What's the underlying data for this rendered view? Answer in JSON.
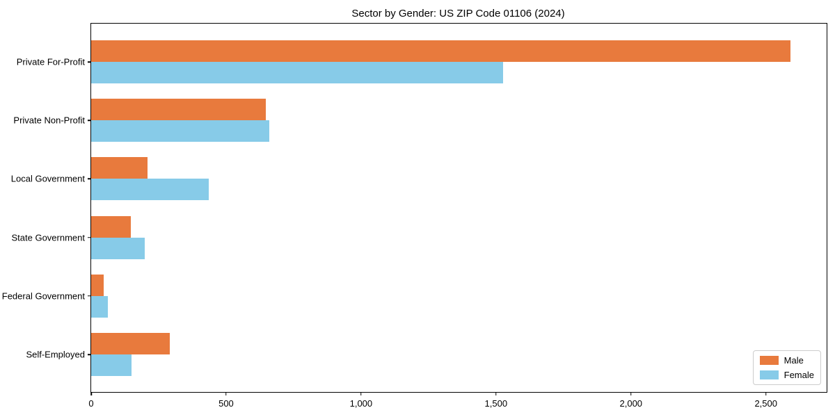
{
  "title": "Sector by Gender: US ZIP Code 01106 (2024)",
  "colors": {
    "male": "#E87A3D",
    "female": "#87CBE8",
    "axis": "#000000",
    "legend_border": "#cccccc",
    "background": "#ffffff"
  },
  "legend": {
    "position": "lower right",
    "entries": [
      {
        "label": "Male",
        "color_key": "male"
      },
      {
        "label": "Female",
        "color_key": "female"
      }
    ]
  },
  "chart_data": {
    "type": "bar",
    "orientation": "horizontal",
    "title": "Sector by Gender: US ZIP Code 01106 (2024)",
    "categories": [
      "Private For-Profit",
      "Private Non-Profit",
      "Local Government",
      "State Government",
      "Federal Government",
      "Self-Employed"
    ],
    "series": [
      {
        "name": "Male",
        "color": "#E87A3D",
        "values": [
          2590,
          647,
          209,
          147,
          46,
          291
        ]
      },
      {
        "name": "Female",
        "color": "#87CBE8",
        "values": [
          1525,
          660,
          436,
          198,
          62,
          149
        ]
      }
    ],
    "xlabel": "",
    "ylabel": "",
    "xlim": [
      0,
      2725
    ],
    "x_ticks": [
      0,
      500,
      1000,
      1500,
      2000,
      2500
    ],
    "x_tick_labels": [
      "0",
      "500",
      "1,000",
      "1,500",
      "2,000",
      "2,500"
    ],
    "grid": false,
    "legend_position": "lower right"
  }
}
